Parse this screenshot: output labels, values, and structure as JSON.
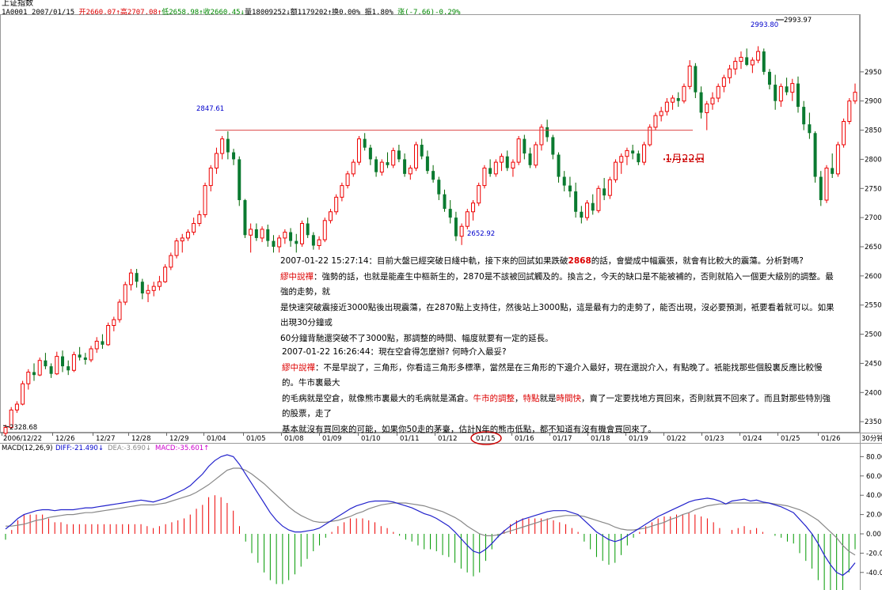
{
  "header": {
    "title": "上证指数",
    "code": "1A0001",
    "date": "2007/01/15",
    "open": "开2660.07↑",
    "high": "高2707.08↑",
    "low": "低2658.98↑",
    "close": "收2660.45↓",
    "volume": "量18009252↓",
    "amount": "额1179202↑",
    "turnover": "换0.00%",
    "amplitude": "振1.80%",
    "change": "涨(-7.66)-0.29%"
  },
  "annotations": {
    "p1_time": "2007-01-22 15:27:14：",
    "p1_q_a": "目前大盤已經突破日綫中軌，接下來的回試如果跌破",
    "p1_q_b": "2868",
    "p1_q_c": "的話，會變成中幅震張，就會有比較大的震蕩。分析對嗎?",
    "p1_r_name": "繆中說禪",
    "p1_r_a": "：強勢的話，也就是能產生中樞新生的，2870是不該被回試觸及的。換言之，今天的缺口是不能被補的，否則就陷入一個更大級別的調整。最強的走勢，就",
    "p1_r_b": "是快速突破震接近3000點後出現震蕩，在2870點上支持住，然後站上3000點，這是最有力的走勢了，能否出現，沒必要預測，衹要看着就可以。如果出現30分鐘或",
    "p1_r_c": "60分鐘背馳還突破不了3000點，那調整的時間、幅度就要有一定的延長。",
    "p2_time": "2007-01-22 16:26:44：",
    "p2_q": "現在空倉得怎麼辦? 何時介入最妥?",
    "p2_r_name": "繆中說禪",
    "p2_r_a": "：不是早說了，三角形，你看這三角形多標準，當然是在三角形的下邊介入最好，現在還說介入，有點晚了。衹能找那些個股裏反應比較慢的。牛市裏最大",
    "p2_r_b1": "的毛病就是空倉，就像熊市裏最大的毛病就是滿倉。",
    "p2_r_b2": "牛市的調整",
    "p2_r_b3": "，",
    "p2_r_b4": "特點",
    "p2_r_b5": "就是",
    "p2_r_b6": "時間快",
    "p2_r_b7": "，賣了一定要找地方買回來，否則就買不回來了。而且對那些特別強的股票，走了",
    "p2_r_c": "基本就沒有買回來的可能，如果你50走的茅臺，估計N年的熊市低點，都不知道有沒有機會買回來了。",
    "jan22": "1月22日"
  },
  "chart_data": {
    "type": "candlestick",
    "ylim": [
      2300,
      3000
    ],
    "yticks": [
      2350,
      2400,
      2450,
      2500,
      2550,
      2600,
      2650,
      2700,
      2750,
      2800,
      2850,
      2900,
      2950
    ],
    "ytick_labels": [
      "2350.",
      "2400.",
      "2450.",
      "2500.",
      "2550.",
      "2600.",
      "2650.",
      "2700.",
      "2750.",
      "2800.",
      "2850.",
      "2900.",
      "2950."
    ],
    "xlabels": [
      "2006/12/22",
      "12/26",
      "12/27",
      "12/28",
      "12/29",
      "01/04",
      "01/05",
      "01/08",
      "01/09",
      "01/10",
      "01/11",
      "01/12",
      "01/15",
      "01/16",
      "01/17",
      "01/18",
      "01/19",
      "01/22",
      "01/23",
      "01/24",
      "01/25",
      "01/26"
    ],
    "period_label": "30分钟",
    "circled_label": "01/15",
    "price_labels": {
      "low_start": "2328.68",
      "peak1": "2847.61",
      "low_mid": "2652.92",
      "peak2": "2993.80",
      "top": "2993.97"
    },
    "resistance_level": 2850,
    "dotted_level": 2800,
    "candles": [
      [
        2330,
        2345,
        2325,
        2340
      ],
      [
        2340,
        2375,
        2338,
        2370
      ],
      [
        2370,
        2385,
        2365,
        2380
      ],
      [
        2380,
        2420,
        2378,
        2415
      ],
      [
        2415,
        2440,
        2405,
        2435
      ],
      [
        2435,
        2450,
        2420,
        2430
      ],
      [
        2430,
        2460,
        2428,
        2455
      ],
      [
        2455,
        2468,
        2440,
        2445
      ],
      [
        2445,
        2450,
        2425,
        2432
      ],
      [
        2432,
        2470,
        2430,
        2462
      ],
      [
        2462,
        2472,
        2435,
        2445
      ],
      [
        2445,
        2455,
        2430,
        2438
      ],
      [
        2438,
        2470,
        2435,
        2465
      ],
      [
        2465,
        2478,
        2455,
        2460
      ],
      [
        2460,
        2468,
        2448,
        2456
      ],
      [
        2456,
        2480,
        2452,
        2475
      ],
      [
        2475,
        2495,
        2468,
        2488
      ],
      [
        2488,
        2500,
        2475,
        2482
      ],
      [
        2482,
        2520,
        2480,
        2515
      ],
      [
        2515,
        2530,
        2505,
        2525
      ],
      [
        2525,
        2560,
        2520,
        2555
      ],
      [
        2555,
        2590,
        2550,
        2585
      ],
      [
        2585,
        2612,
        2575,
        2605
      ],
      [
        2605,
        2612,
        2580,
        2590
      ],
      [
        2590,
        2595,
        2560,
        2570
      ],
      [
        2570,
        2585,
        2555,
        2575
      ],
      [
        2575,
        2590,
        2565,
        2582
      ],
      [
        2582,
        2600,
        2575,
        2590
      ],
      [
        2590,
        2620,
        2588,
        2615
      ],
      [
        2615,
        2640,
        2610,
        2635
      ],
      [
        2635,
        2665,
        2630,
        2660
      ],
      [
        2660,
        2672,
        2640,
        2665
      ],
      [
        2665,
        2680,
        2660,
        2675
      ],
      [
        2675,
        2700,
        2670,
        2690
      ],
      [
        2690,
        2712,
        2685,
        2705
      ],
      [
        2705,
        2760,
        2700,
        2755
      ],
      [
        2755,
        2790,
        2745,
        2785
      ],
      [
        2785,
        2820,
        2775,
        2810
      ],
      [
        2810,
        2840,
        2800,
        2835
      ],
      [
        2835,
        2848,
        2800,
        2812
      ],
      [
        2812,
        2818,
        2790,
        2800
      ],
      [
        2800,
        2805,
        2720,
        2730
      ],
      [
        2730,
        2732,
        2665,
        2670
      ],
      [
        2670,
        2690,
        2640,
        2680
      ],
      [
        2680,
        2690,
        2660,
        2665
      ],
      [
        2665,
        2685,
        2658,
        2680
      ],
      [
        2680,
        2688,
        2650,
        2660
      ],
      [
        2660,
        2670,
        2640,
        2650
      ],
      [
        2650,
        2670,
        2640,
        2665
      ],
      [
        2665,
        2680,
        2655,
        2675
      ],
      [
        2675,
        2682,
        2650,
        2660
      ],
      [
        2660,
        2672,
        2640,
        2655
      ],
      [
        2655,
        2695,
        2650,
        2690
      ],
      [
        2690,
        2700,
        2665,
        2670
      ],
      [
        2670,
        2675,
        2645,
        2652
      ],
      [
        2652,
        2668,
        2645,
        2662
      ],
      [
        2662,
        2700,
        2658,
        2695
      ],
      [
        2695,
        2715,
        2690,
        2710
      ],
      [
        2710,
        2740,
        2705,
        2735
      ],
      [
        2735,
        2760,
        2728,
        2755
      ],
      [
        2755,
        2780,
        2750,
        2775
      ],
      [
        2775,
        2800,
        2770,
        2795
      ],
      [
        2795,
        2840,
        2790,
        2835
      ],
      [
        2835,
        2845,
        2815,
        2820
      ],
      [
        2820,
        2825,
        2790,
        2800
      ],
      [
        2800,
        2805,
        2770,
        2778
      ],
      [
        2778,
        2800,
        2772,
        2795
      ],
      [
        2795,
        2812,
        2785,
        2790
      ],
      [
        2790,
        2820,
        2785,
        2815
      ],
      [
        2815,
        2825,
        2795,
        2800
      ],
      [
        2800,
        2810,
        2770,
        2775
      ],
      [
        2775,
        2790,
        2765,
        2785
      ],
      [
        2785,
        2830,
        2780,
        2825
      ],
      [
        2825,
        2835,
        2800,
        2805
      ],
      [
        2805,
        2815,
        2775,
        2780
      ],
      [
        2780,
        2790,
        2760,
        2765
      ],
      [
        2765,
        2770,
        2730,
        2740
      ],
      [
        2740,
        2748,
        2710,
        2715
      ],
      [
        2715,
        2730,
        2690,
        2700
      ],
      [
        2700,
        2710,
        2660,
        2668
      ],
      [
        2668,
        2690,
        2653,
        2685
      ],
      [
        2685,
        2715,
        2680,
        2710
      ],
      [
        2710,
        2730,
        2695,
        2725
      ],
      [
        2725,
        2760,
        2720,
        2755
      ],
      [
        2755,
        2790,
        2750,
        2785
      ],
      [
        2785,
        2800,
        2770,
        2775
      ],
      [
        2775,
        2800,
        2770,
        2795
      ],
      [
        2795,
        2810,
        2780,
        2805
      ],
      [
        2805,
        2815,
        2780,
        2785
      ],
      [
        2785,
        2800,
        2770,
        2795
      ],
      [
        2795,
        2840,
        2790,
        2835
      ],
      [
        2835,
        2842,
        2800,
        2810
      ],
      [
        2810,
        2820,
        2785,
        2790
      ],
      [
        2790,
        2830,
        2785,
        2825
      ],
      [
        2825,
        2860,
        2815,
        2855
      ],
      [
        2855,
        2868,
        2830,
        2838
      ],
      [
        2838,
        2842,
        2800,
        2808
      ],
      [
        2808,
        2812,
        2760,
        2770
      ],
      [
        2770,
        2780,
        2745,
        2755
      ],
      [
        2755,
        2770,
        2735,
        2745
      ],
      [
        2745,
        2760,
        2700,
        2710
      ],
      [
        2710,
        2720,
        2690,
        2700
      ],
      [
        2700,
        2730,
        2695,
        2725
      ],
      [
        2725,
        2740,
        2705,
        2712
      ],
      [
        2712,
        2755,
        2708,
        2750
      ],
      [
        2750,
        2768,
        2730,
        2738
      ],
      [
        2738,
        2770,
        2732,
        2765
      ],
      [
        2765,
        2800,
        2760,
        2795
      ],
      [
        2795,
        2810,
        2775,
        2805
      ],
      [
        2805,
        2820,
        2790,
        2815
      ],
      [
        2815,
        2825,
        2800,
        2810
      ],
      [
        2810,
        2815,
        2790,
        2795
      ],
      [
        2795,
        2830,
        2790,
        2825
      ],
      [
        2825,
        2860,
        2822,
        2855
      ],
      [
        2855,
        2880,
        2850,
        2875
      ],
      [
        2875,
        2890,
        2865,
        2882
      ],
      [
        2882,
        2905,
        2875,
        2898
      ],
      [
        2898,
        2910,
        2885,
        2905
      ],
      [
        2905,
        2915,
        2890,
        2900
      ],
      [
        2900,
        2930,
        2896,
        2925
      ],
      [
        2925,
        2970,
        2920,
        2960
      ],
      [
        2960,
        2965,
        2905,
        2915
      ],
      [
        2915,
        2925,
        2870,
        2880
      ],
      [
        2880,
        2900,
        2850,
        2895
      ],
      [
        2895,
        2915,
        2885,
        2905
      ],
      [
        2905,
        2930,
        2898,
        2925
      ],
      [
        2925,
        2945,
        2915,
        2940
      ],
      [
        2940,
        2962,
        2930,
        2955
      ],
      [
        2955,
        2975,
        2945,
        2968
      ],
      [
        2968,
        2985,
        2955,
        2975
      ],
      [
        2975,
        2990,
        2960,
        2962
      ],
      [
        2962,
        2975,
        2948,
        2970
      ],
      [
        2970,
        2994,
        2965,
        2985
      ],
      [
        2985,
        2990,
        2945,
        2950
      ],
      [
        2950,
        2955,
        2920,
        2928
      ],
      [
        2928,
        2945,
        2885,
        2900
      ],
      [
        2900,
        2930,
        2890,
        2925
      ],
      [
        2925,
        2940,
        2910,
        2915
      ],
      [
        2915,
        2938,
        2900,
        2930
      ],
      [
        2930,
        2942,
        2880,
        2890
      ],
      [
        2890,
        2900,
        2850,
        2860
      ],
      [
        2860,
        2880,
        2835,
        2845
      ],
      [
        2845,
        2848,
        2760,
        2770
      ],
      [
        2770,
        2780,
        2720,
        2730
      ],
      [
        2730,
        2790,
        2725,
        2785
      ],
      [
        2785,
        2810,
        2768,
        2775
      ],
      [
        2775,
        2830,
        2770,
        2825
      ],
      [
        2825,
        2870,
        2820,
        2865
      ],
      [
        2865,
        2905,
        2860,
        2900
      ],
      [
        2900,
        2930,
        2895,
        2915
      ]
    ],
    "macd": {
      "title": "MACD(12,26,9)",
      "diff_label": "DIFF:-21.490↓",
      "dea_label": "DEA:-3.690↓",
      "macd_label": "MACD:-35.601↑",
      "ylim": [
        -70,
        90
      ],
      "yticks": [
        80,
        60,
        40,
        20,
        0,
        -20,
        -40
      ],
      "ytick_labels": [
        "80.00",
        "60.00",
        "40.00",
        "20.00",
        "0.00",
        "-20.00",
        "-40.00"
      ],
      "diff": [
        5,
        10,
        16,
        20,
        22,
        24,
        25,
        25,
        24,
        25,
        25,
        25,
        26,
        27,
        27,
        28,
        29,
        30,
        31,
        32,
        33,
        34,
        35,
        34,
        33,
        35,
        37,
        40,
        43,
        46,
        50,
        56,
        62,
        70,
        76,
        80,
        82,
        80,
        72,
        62,
        52,
        42,
        32,
        22,
        14,
        8,
        4,
        2,
        2,
        3,
        4,
        6,
        10,
        14,
        18,
        22,
        26,
        29,
        31,
        33,
        34,
        34,
        34,
        33,
        31,
        29,
        27,
        24,
        21,
        19,
        16,
        12,
        8,
        2,
        -5,
        -12,
        -18,
        -20,
        -16,
        -10,
        -3,
        3,
        8,
        12,
        15,
        17,
        19,
        21,
        23,
        24,
        24,
        24,
        22,
        20,
        14,
        8,
        2,
        -2,
        -6,
        -8,
        -6,
        -2,
        2,
        6,
        10,
        14,
        18,
        21,
        24,
        27,
        30,
        33,
        35,
        36,
        37,
        36,
        34,
        31,
        34,
        35,
        36,
        34,
        35,
        33,
        32,
        30,
        28,
        25,
        22,
        15,
        8,
        0,
        -10,
        -22,
        -32,
        -40,
        -43,
        -38,
        -30
      ],
      "dea": [
        8,
        8,
        9,
        10,
        12,
        14,
        15,
        17,
        18,
        19,
        20,
        20,
        21,
        22,
        22,
        23,
        24,
        25,
        26,
        27,
        28,
        29,
        30,
        30,
        30,
        31,
        32,
        34,
        36,
        38,
        40,
        43,
        47,
        51,
        56,
        61,
        66,
        68,
        68,
        66,
        62,
        57,
        52,
        46,
        40,
        34,
        28,
        23,
        19,
        16,
        13,
        12,
        12,
        13,
        14,
        16,
        18,
        21,
        23,
        26,
        28,
        30,
        31,
        32,
        32,
        32,
        31,
        30,
        29,
        27,
        25,
        23,
        20,
        17,
        13,
        8,
        4,
        0,
        -2,
        -2,
        -1,
        1,
        3,
        5,
        7,
        9,
        11,
        13,
        15,
        17,
        18,
        19,
        19,
        19,
        18,
        16,
        14,
        12,
        10,
        7,
        5,
        4,
        4,
        5,
        6,
        8,
        10,
        12,
        15,
        17,
        20,
        22,
        25,
        27,
        29,
        30,
        31,
        31,
        32,
        32,
        32,
        32,
        32,
        32,
        32,
        31,
        30,
        29,
        27,
        25,
        22,
        18,
        14,
        8,
        2,
        -4,
        -12,
        -18,
        -22
      ]
    }
  }
}
